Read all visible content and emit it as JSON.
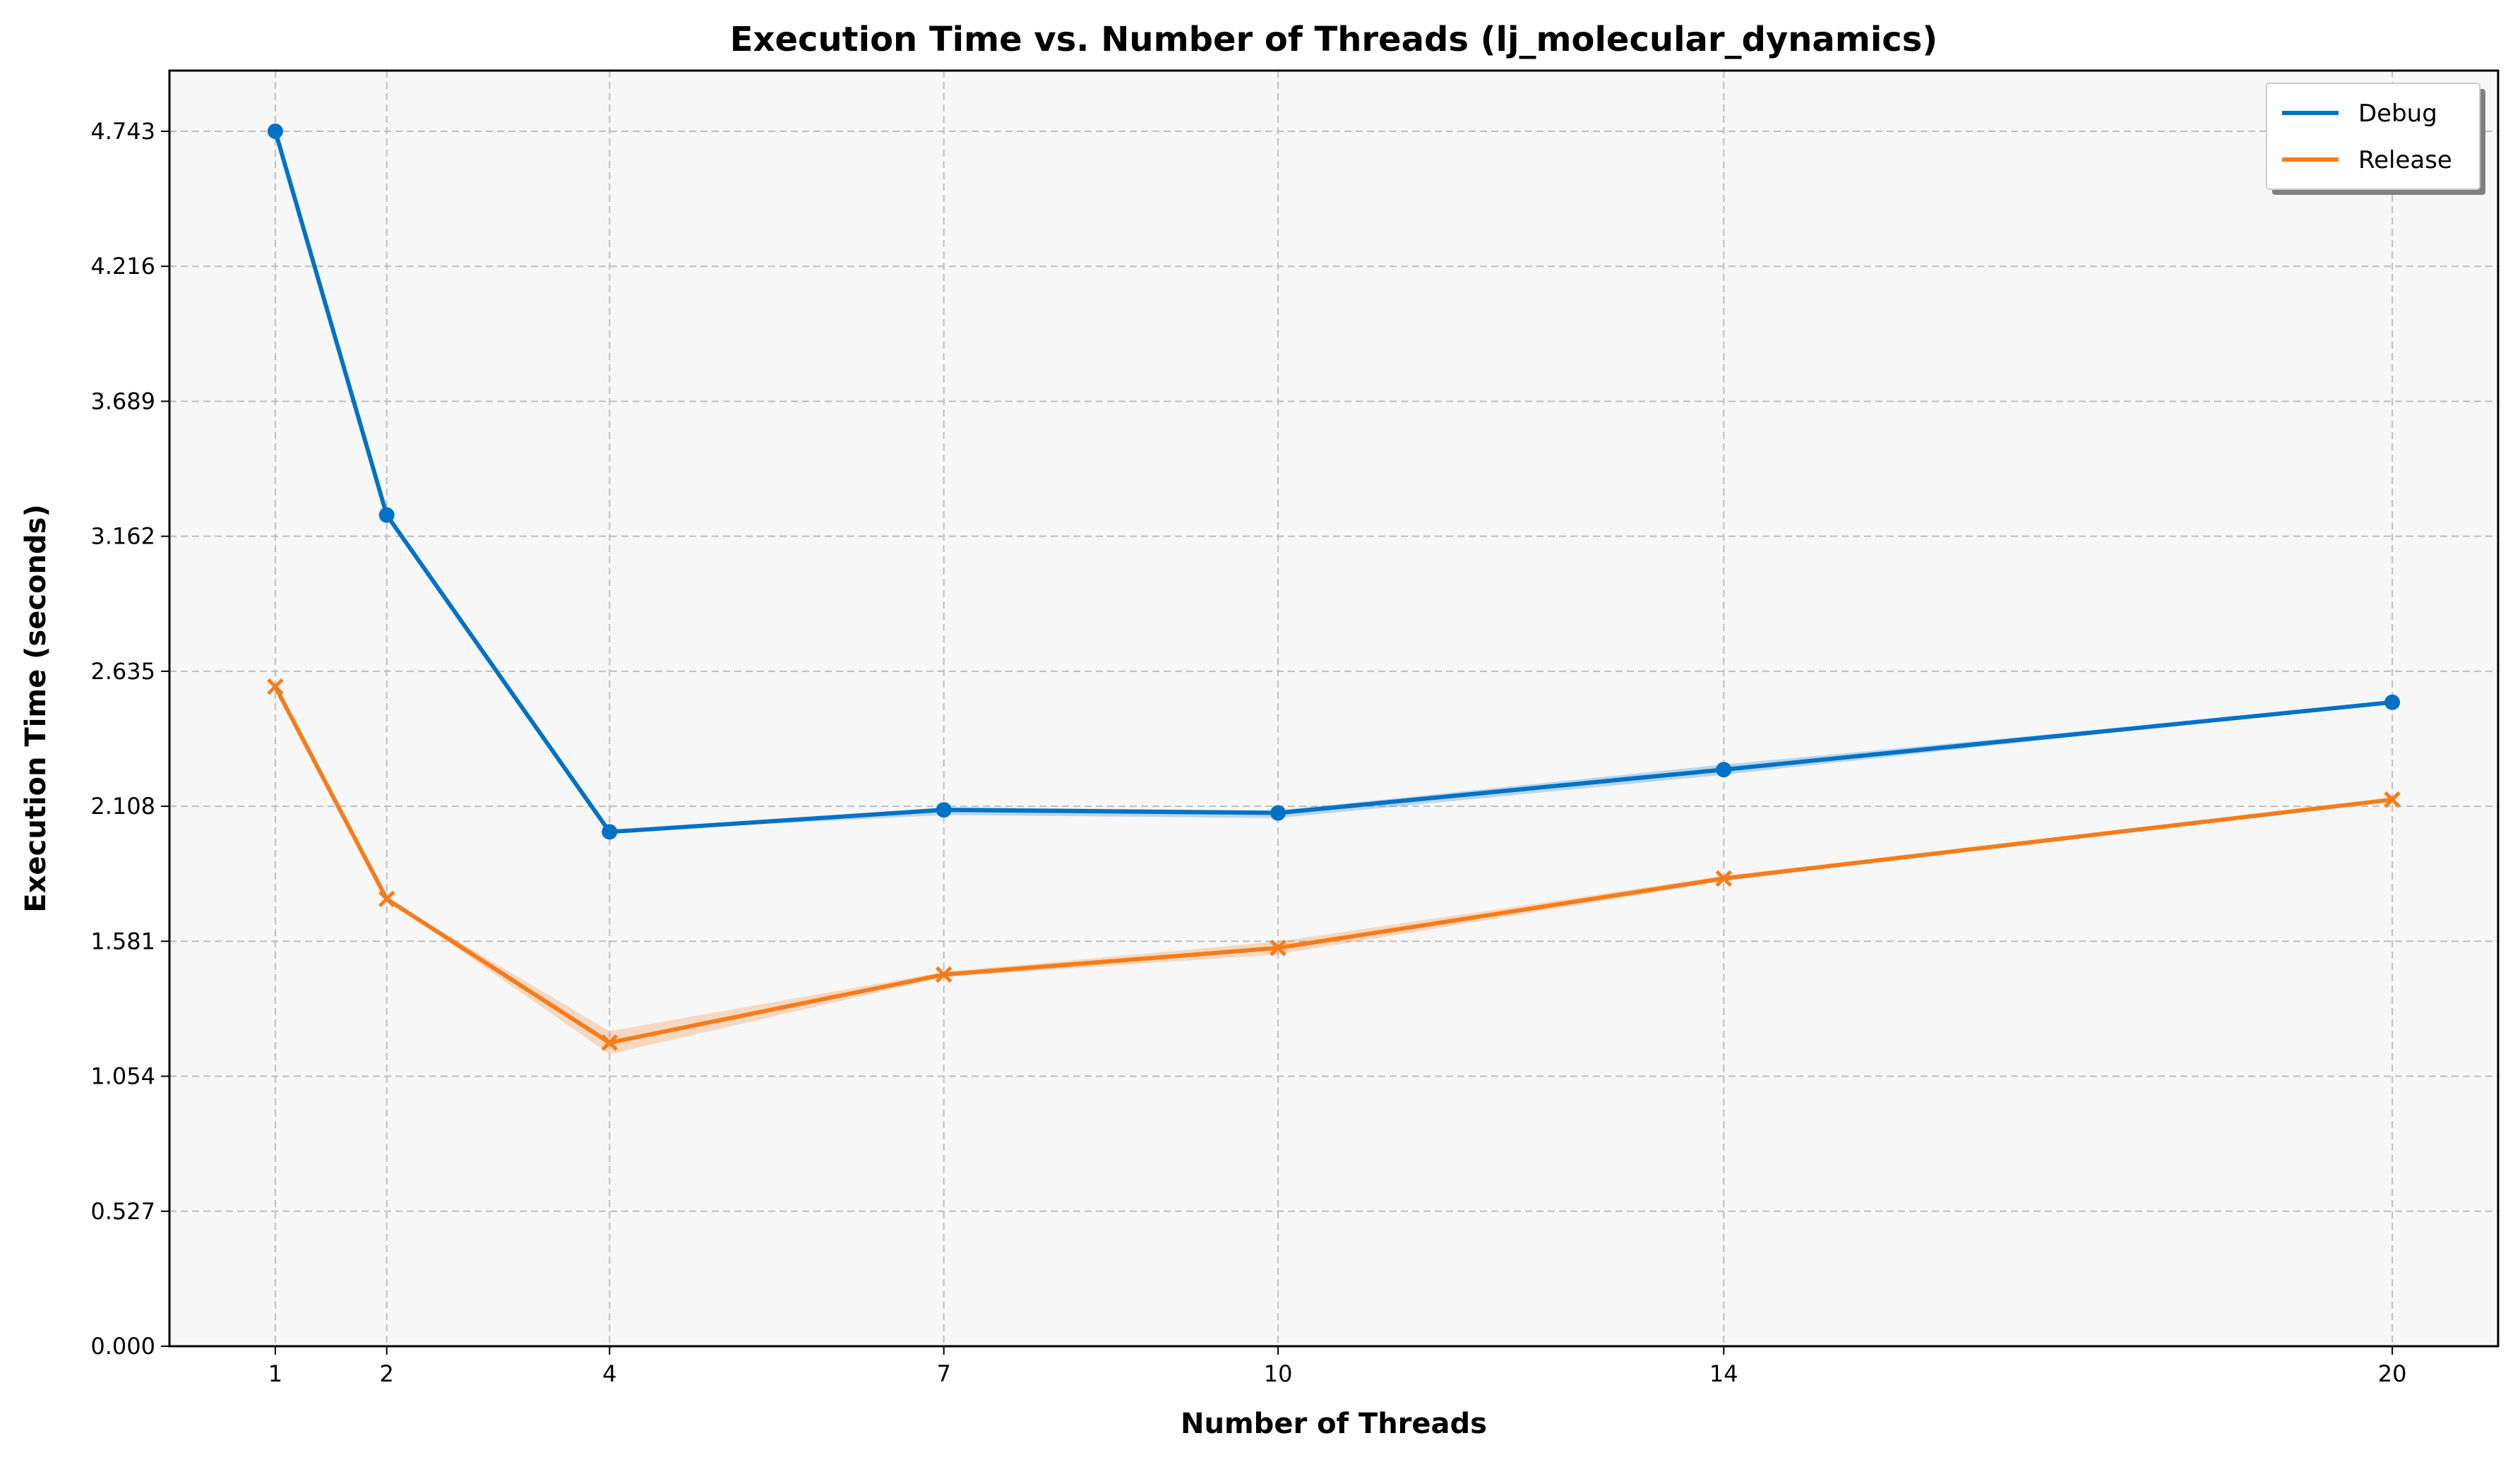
{
  "chart_data": {
    "type": "line",
    "title": "Execution Time vs. Number of Threads (lj_molecular_dynamics)",
    "xlabel": "Number of Threads",
    "ylabel": "Execution Time (seconds)",
    "x": [
      1,
      2,
      4,
      7,
      10,
      14,
      20
    ],
    "xlim": [
      0.05,
      20.95
    ],
    "ylim": [
      0,
      4.98
    ],
    "yticks": [
      "0.000",
      "0.527",
      "1.054",
      "1.581",
      "2.108",
      "2.635",
      "3.162",
      "3.689",
      "4.216",
      "4.743"
    ],
    "grid": true,
    "legend_position": "top-right",
    "series": [
      {
        "name": "Debug",
        "color": "#0072c6",
        "marker": "circle",
        "values": [
          4.743,
          3.245,
          2.008,
          2.094,
          2.082,
          2.251,
          2.514
        ],
        "band_low": [
          4.743,
          3.245,
          2.008,
          2.074,
          2.062,
          2.231,
          2.514
        ],
        "band_high": [
          4.743,
          3.245,
          2.008,
          2.104,
          2.092,
          2.271,
          2.514
        ]
      },
      {
        "name": "Release",
        "color": "#f57c1b",
        "marker": "x",
        "values": [
          2.575,
          1.746,
          1.185,
          1.451,
          1.555,
          1.826,
          2.134
        ],
        "band_low": [
          2.575,
          1.746,
          1.14,
          1.441,
          1.53,
          1.816,
          2.134
        ],
        "band_high": [
          2.575,
          1.746,
          1.23,
          1.461,
          1.58,
          1.836,
          2.134
        ]
      }
    ]
  }
}
